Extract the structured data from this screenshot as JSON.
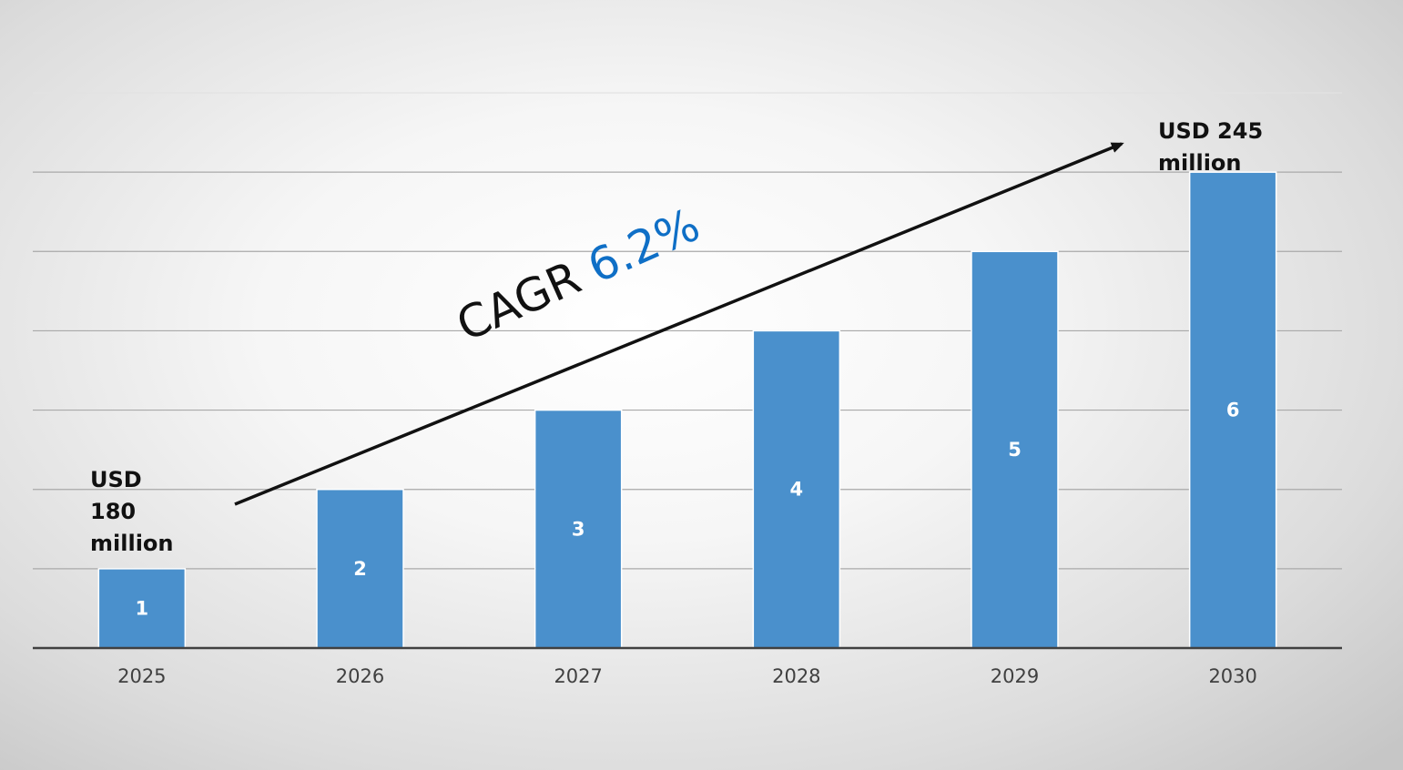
{
  "chart_data": {
    "type": "bar",
    "title": "",
    "xlabel": "",
    "ylabel": "",
    "categories": [
      "2025",
      "2026",
      "2027",
      "2028",
      "2029",
      "2030"
    ],
    "values": [
      1,
      2,
      3,
      4,
      5,
      6
    ],
    "data_labels": [
      "1",
      "2",
      "3",
      "4",
      "5",
      "6"
    ],
    "ylim": [
      0,
      7
    ],
    "grid": true,
    "bar_color": "#4a90cc",
    "annotations": {
      "start_value": "USD 180 million",
      "end_value": "USD 245 million",
      "cagr_label": "CAGR",
      "cagr_value": "6.2%",
      "cagr_color": "#0f6fc6"
    }
  }
}
